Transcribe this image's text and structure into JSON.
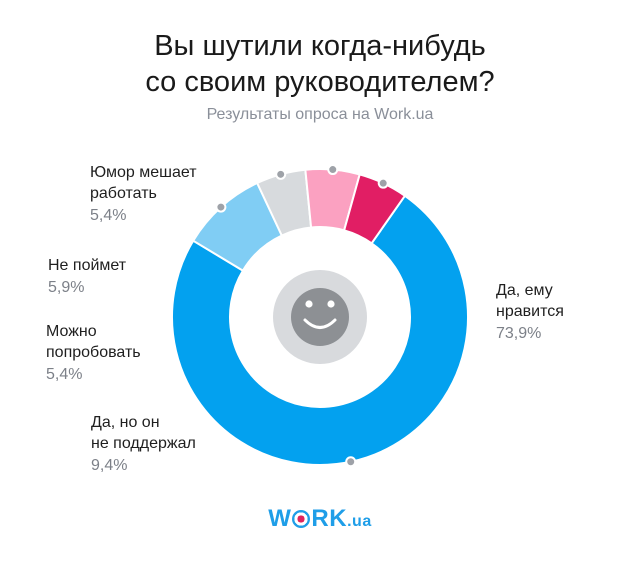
{
  "title_line1": "Вы шутили когда-нибудь",
  "title_line2": "со своим руководителем?",
  "subtitle": "Результаты опроса на Work.ua",
  "logo": {
    "left": "W",
    "right": "RK",
    "tld": ".ua"
  },
  "colors": {
    "accent": "#1f9ee8",
    "brand_pink": "#e0245e"
  },
  "chart_data": {
    "type": "pie",
    "donut": true,
    "center_icon": "smiley-face-icon",
    "slices": [
      {
        "label_line1": "Да, ему",
        "label_line2": "нравится",
        "value": 73.9,
        "display": "73,9%",
        "color": "#03a1ef"
      },
      {
        "label_line1": "Да, но он",
        "label_line2": "не поддержал",
        "value": 9.4,
        "display": "9,4%",
        "color": "#80cdf4"
      },
      {
        "label_line1": "Можно",
        "label_line2": "попробовать",
        "value": 5.4,
        "display": "5,4%",
        "color": "#d7dadd"
      },
      {
        "label_line1": "Не поймет",
        "label_line2": "",
        "value": 5.9,
        "display": "5,9%",
        "color": "#fba1c1"
      },
      {
        "label_line1": "Юмор мешает",
        "label_line2": "работать",
        "value": 5.4,
        "display": "5,4%",
        "color": "#e11e64"
      }
    ]
  }
}
